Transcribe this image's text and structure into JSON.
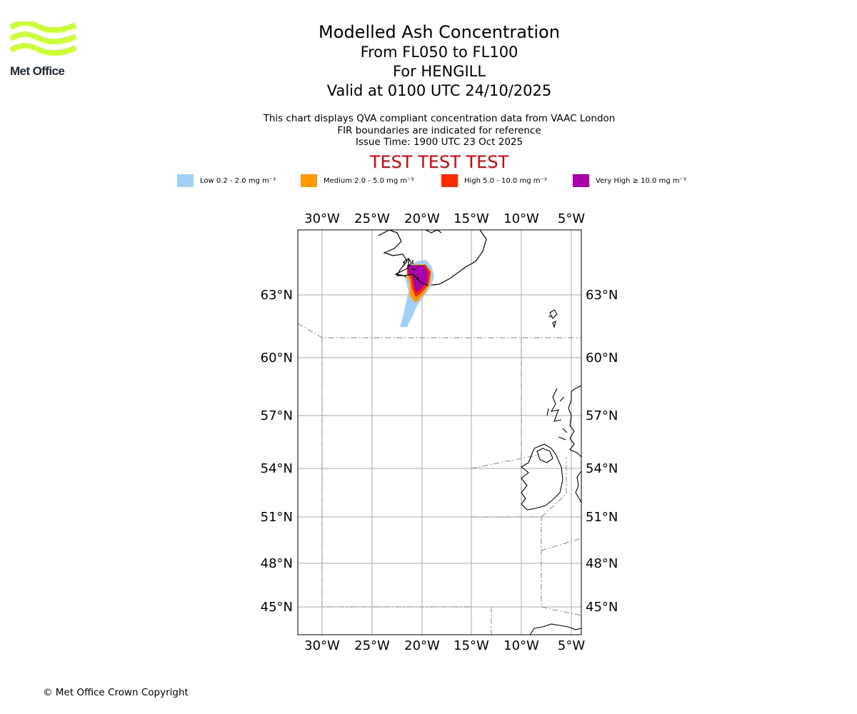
{
  "brand": {
    "name": "Met Office",
    "logo_color": "#ccff33"
  },
  "title": {
    "main": "Modelled Ash Concentration",
    "levels": "From FL050 to FL100",
    "volcano": "For HENGILL",
    "valid": "Valid at 0100 UTC 24/10/2025"
  },
  "description": {
    "line1": "This chart displays QVA compliant concentration data from VAAC London",
    "line2": "FIR boundaries are indicated for reference",
    "issue": "Issue Time: 1900 UTC 23 Oct 2025"
  },
  "banner": "TEST TEST TEST",
  "legend": [
    {
      "label": "Low 0.2 - 2.0 mg m⁻³",
      "color": "#a0d2f8"
    },
    {
      "label": "Medium 2.0 - 5.0 mg m⁻³",
      "color": "#ff9900"
    },
    {
      "label": "High 5.0 - 10.0 mg m⁻³",
      "color": "#ff2a00"
    },
    {
      "label": "Very High ≥ 10.0 mg m⁻³",
      "color": "#aa00aa"
    }
  ],
  "map": {
    "lon_ticks": [
      "30°W",
      "25°W",
      "20°W",
      "15°W",
      "10°W",
      "5°W"
    ],
    "lat_ticks": [
      "63°N",
      "60°N",
      "57°N",
      "54°N",
      "51°N",
      "48°N",
      "45°N"
    ],
    "gridline_color": "#aaaaaa",
    "fir_color": "#999999"
  },
  "footer": {
    "copyright": "© Met Office Crown Copyright"
  }
}
